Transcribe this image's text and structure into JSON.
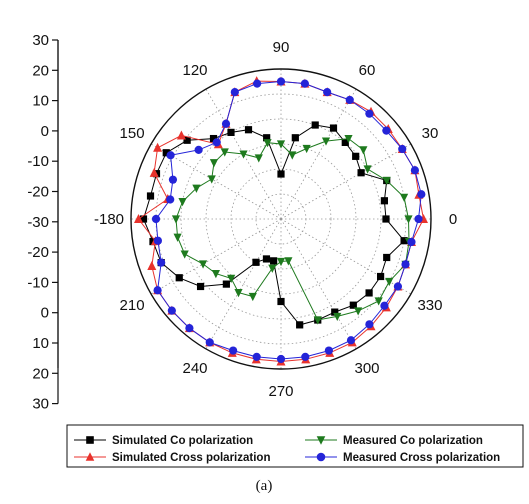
{
  "chart_data": {
    "type": "polar-line",
    "title": "",
    "caption": "(a)",
    "radial_axis": {
      "min": -30,
      "max": 30,
      "left_ticks": [
        "30",
        "20",
        "10",
        "0",
        "-10",
        "-20",
        "-30"
      ],
      "lower_left_ticks": [
        "-20",
        "-10",
        "0",
        "10",
        "20",
        "30"
      ],
      "gridlines": "dotted"
    },
    "angular_axis": {
      "unit": "degrees",
      "ticks": [
        0,
        30,
        60,
        90,
        120,
        150,
        180,
        210,
        240,
        270,
        300,
        330
      ],
      "tick_labels": [
        "0",
        "30",
        "60",
        "90",
        "120",
        "150",
        "-180",
        "210",
        "240",
        "270",
        "300",
        "330"
      ]
    },
    "legend": {
      "placement": "bottom",
      "entries": [
        {
          "series": 0,
          "label": "Simulated Co polarization"
        },
        {
          "series": 2,
          "label": "Measured Co polarization"
        },
        {
          "series": 1,
          "label": "Simulated Cross polarization"
        },
        {
          "series": 3,
          "label": "Measured Cross polarization"
        }
      ]
    },
    "series": [
      {
        "name": "Simulated Co polarization",
        "color": "#000000",
        "marker": "square",
        "angles": [
          0,
          10,
          20,
          30,
          40,
          50,
          60,
          70,
          80,
          90,
          100,
          110,
          120,
          130,
          140,
          150,
          160,
          170,
          180,
          190,
          200,
          210,
          220,
          230,
          240,
          250,
          260,
          270,
          280,
          290,
          300,
          310,
          320,
          330,
          340,
          350
        ],
        "values": [
          12,
          12,
          15,
          7,
          9,
          10,
          12,
          10,
          3,
          -12,
          3,
          8,
          10,
          12,
          19,
          23,
          23,
          23,
          25,
          22,
          21,
          17,
          12,
          4,
          -10,
          -13,
          -13,
          3,
          13,
          13,
          13,
          15,
          16,
          16,
          15,
          20
        ]
      },
      {
        "name": "Simulated Cross polarization",
        "color": "#e8322c",
        "marker": "triangle-up",
        "angles": [
          0,
          10,
          20,
          30,
          40,
          50,
          60,
          70,
          80,
          90,
          100,
          110,
          120,
          130,
          140,
          150,
          160,
          170,
          180,
          190,
          200,
          210,
          220,
          230,
          240,
          250,
          260,
          270,
          280,
          290,
          300,
          310,
          320,
          330,
          340,
          350
        ],
        "values": [
          27,
          26,
          27,
          26,
          26,
          26,
          25,
          24,
          25,
          25,
          26,
          24,
          14,
          9,
          22,
          27,
          24,
          16,
          27,
          21,
          25,
          27,
          27,
          27,
          27,
          27,
          27,
          27,
          27,
          27,
          27,
          26,
          25,
          24,
          23,
          23
        ]
      },
      {
        "name": "Measured Co polarization",
        "color": "#1e7a1e",
        "marker": "triangle-down",
        "angles": [
          0,
          10,
          20,
          30,
          40,
          50,
          60,
          70,
          80,
          90,
          100,
          110,
          120,
          130,
          140,
          150,
          160,
          170,
          180,
          190,
          200,
          210,
          220,
          230,
          240,
          250,
          260,
          270,
          280,
          290,
          300,
          310,
          320,
          330,
          340,
          350
        ],
        "values": [
          21,
          20,
          15,
          10,
          13,
          12,
          6,
          0,
          -4,
          0,
          1,
          -4,
          0,
          5,
          5,
          2,
          6,
          10,
          12,
          12,
          11,
          6,
          4,
          1,
          4,
          3,
          -10,
          -13,
          -13,
          13,
          15,
          18,
          21,
          20,
          23,
          22
        ]
      },
      {
        "name": "Measured Cross polarization",
        "color": "#2424d8",
        "marker": "circle",
        "angles": [
          0,
          10,
          20,
          30,
          40,
          50,
          60,
          70,
          80,
          90,
          100,
          110,
          120,
          130,
          140,
          150,
          160,
          170,
          180,
          190,
          200,
          210,
          220,
          230,
          240,
          250,
          260,
          270,
          280,
          290,
          300,
          310,
          320,
          330,
          340,
          350
        ],
        "values": [
          25,
          27,
          27,
          26,
          25,
          25,
          25,
          24,
          25,
          25,
          25,
          24,
          14,
          10,
          13,
          21,
          16,
          15,
          20,
          20,
          21,
          27,
          27,
          27,
          27,
          26,
          26,
          26,
          26,
          26,
          26,
          25,
          24,
          24,
          23,
          23
        ]
      }
    ]
  }
}
